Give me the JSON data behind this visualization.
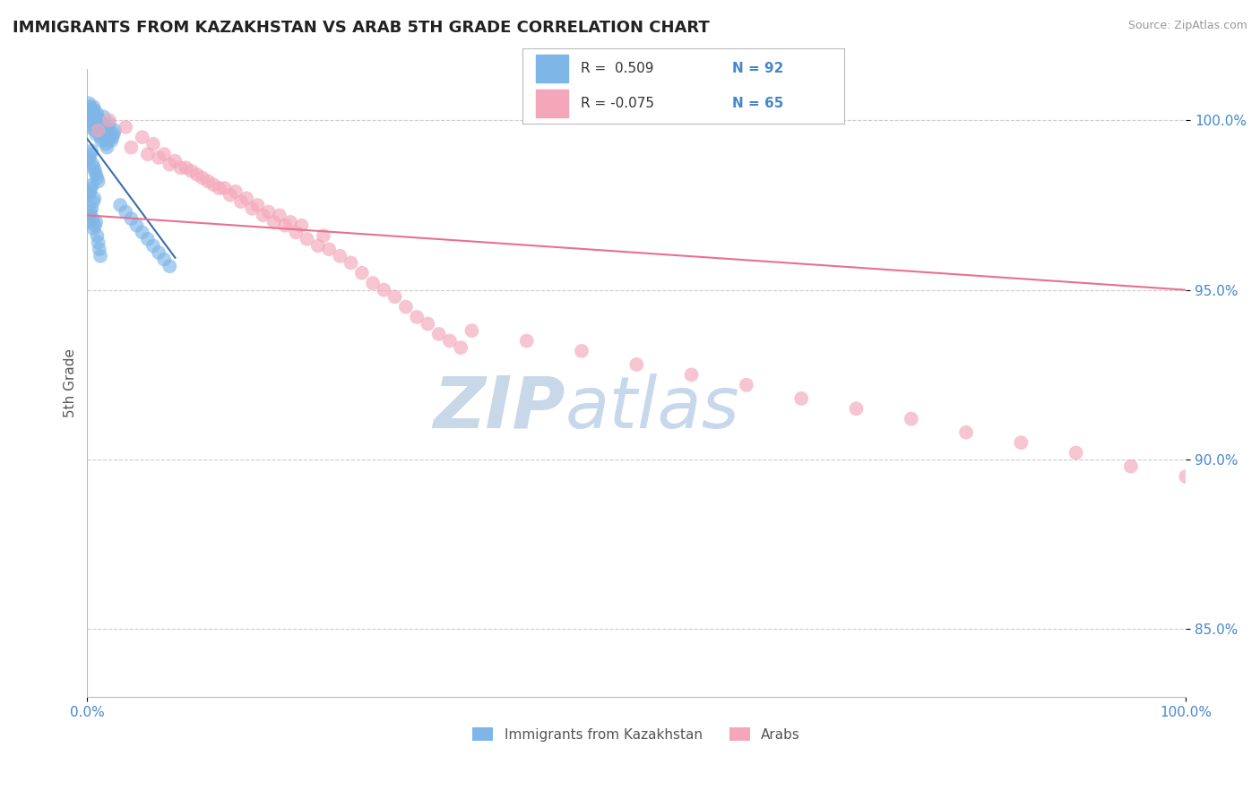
{
  "title": "IMMIGRANTS FROM KAZAKHSTAN VS ARAB 5TH GRADE CORRELATION CHART",
  "source_text": "Source: ZipAtlas.com",
  "ylabel": "5th Grade",
  "xlim": [
    0.0,
    100.0
  ],
  "ylim": [
    83.0,
    101.5
  ],
  "yticks": [
    85.0,
    90.0,
    95.0,
    100.0
  ],
  "legend_label1": "Immigrants from Kazakhstan",
  "legend_label2": "Arabs",
  "blue_color": "#7EB6E8",
  "pink_color": "#F4A7B9",
  "blue_line_color": "#3A6EA8",
  "pink_line_color": "#E87090",
  "title_color": "#222222",
  "axis_label_color": "#555555",
  "tick_label_color": "#4488CC",
  "grid_color": "#CCCCCC",
  "watermark_color": "#DDDDDD",
  "blue_scatter_x": [
    0.1,
    0.15,
    0.2,
    0.25,
    0.3,
    0.35,
    0.4,
    0.45,
    0.5,
    0.55,
    0.6,
    0.65,
    0.7,
    0.75,
    0.8,
    0.85,
    0.9,
    0.95,
    1.0,
    1.1,
    1.2,
    1.3,
    1.4,
    1.5,
    1.6,
    1.7,
    1.8,
    1.9,
    2.0,
    2.1,
    2.2,
    2.3,
    2.4,
    2.5,
    0.1,
    0.2,
    0.3,
    0.4,
    0.5,
    0.6,
    0.7,
    0.8,
    0.9,
    1.0,
    1.1,
    1.2,
    1.3,
    1.4,
    1.5,
    1.6,
    1.7,
    1.8,
    1.9,
    2.0,
    0.1,
    0.2,
    0.3,
    0.4,
    0.5,
    0.6,
    0.7,
    0.8,
    0.9,
    1.0,
    0.15,
    0.25,
    0.35,
    0.45,
    0.55,
    0.65,
    3.0,
    3.5,
    4.0,
    4.5,
    5.0,
    5.5,
    6.0,
    6.5,
    7.0,
    7.5,
    0.1,
    0.2,
    0.3,
    0.4,
    0.5,
    0.6,
    0.7,
    0.8,
    0.9,
    1.0,
    1.1,
    1.2
  ],
  "blue_scatter_y": [
    100.3,
    100.5,
    100.4,
    100.2,
    100.1,
    100.3,
    100.0,
    99.9,
    100.2,
    100.4,
    100.1,
    100.3,
    100.0,
    99.8,
    99.9,
    100.1,
    100.2,
    99.7,
    99.8,
    100.0,
    99.9,
    99.7,
    99.8,
    100.1,
    99.6,
    99.5,
    99.7,
    99.8,
    99.9,
    99.6,
    99.4,
    99.5,
    99.6,
    99.7,
    99.8,
    100.0,
    99.9,
    100.2,
    100.3,
    100.1,
    99.7,
    99.6,
    99.8,
    99.9,
    100.0,
    99.5,
    99.4,
    99.6,
    99.7,
    99.8,
    99.3,
    99.2,
    99.4,
    99.5,
    98.8,
    98.9,
    99.0,
    99.1,
    98.7,
    98.6,
    98.5,
    98.4,
    98.3,
    98.2,
    97.8,
    97.9,
    98.0,
    98.1,
    97.6,
    97.7,
    97.5,
    97.3,
    97.1,
    96.9,
    96.7,
    96.5,
    96.3,
    96.1,
    95.9,
    95.7,
    97.0,
    97.2,
    97.3,
    97.4,
    97.1,
    96.8,
    96.9,
    97.0,
    96.6,
    96.4,
    96.2,
    96.0
  ],
  "pink_scatter_x": [
    1.0,
    2.0,
    3.5,
    5.0,
    6.0,
    7.0,
    8.0,
    9.0,
    10.0,
    11.0,
    12.0,
    13.0,
    14.0,
    15.0,
    16.0,
    17.0,
    18.0,
    19.0,
    20.0,
    21.0,
    22.0,
    23.0,
    24.0,
    25.0,
    26.0,
    27.0,
    28.0,
    29.0,
    30.0,
    31.0,
    4.0,
    5.5,
    7.5,
    9.5,
    11.5,
    13.5,
    15.5,
    17.5,
    19.5,
    21.5,
    6.5,
    8.5,
    10.5,
    12.5,
    14.5,
    16.5,
    18.5,
    35.0,
    40.0,
    45.0,
    50.0,
    55.0,
    60.0,
    65.0,
    70.0,
    75.0,
    80.0,
    85.0,
    90.0,
    95.0,
    100.0,
    32.0,
    33.0,
    34.0
  ],
  "pink_scatter_y": [
    99.7,
    100.0,
    99.8,
    99.5,
    99.3,
    99.0,
    98.8,
    98.6,
    98.4,
    98.2,
    98.0,
    97.8,
    97.6,
    97.4,
    97.2,
    97.0,
    96.9,
    96.7,
    96.5,
    96.3,
    96.2,
    96.0,
    95.8,
    95.5,
    95.2,
    95.0,
    94.8,
    94.5,
    94.2,
    94.0,
    99.2,
    99.0,
    98.7,
    98.5,
    98.1,
    97.9,
    97.5,
    97.2,
    96.9,
    96.6,
    98.9,
    98.6,
    98.3,
    98.0,
    97.7,
    97.3,
    97.0,
    93.8,
    93.5,
    93.2,
    92.8,
    92.5,
    92.2,
    91.8,
    91.5,
    91.2,
    90.8,
    90.5,
    90.2,
    89.8,
    89.5,
    93.7,
    93.5,
    93.3
  ],
  "pink_line_start_x": 0.0,
  "pink_line_start_y": 97.2,
  "pink_line_end_x": 100.0,
  "pink_line_end_y": 95.0,
  "blue_trend_x0": 0.0,
  "blue_trend_x1": 8.0
}
